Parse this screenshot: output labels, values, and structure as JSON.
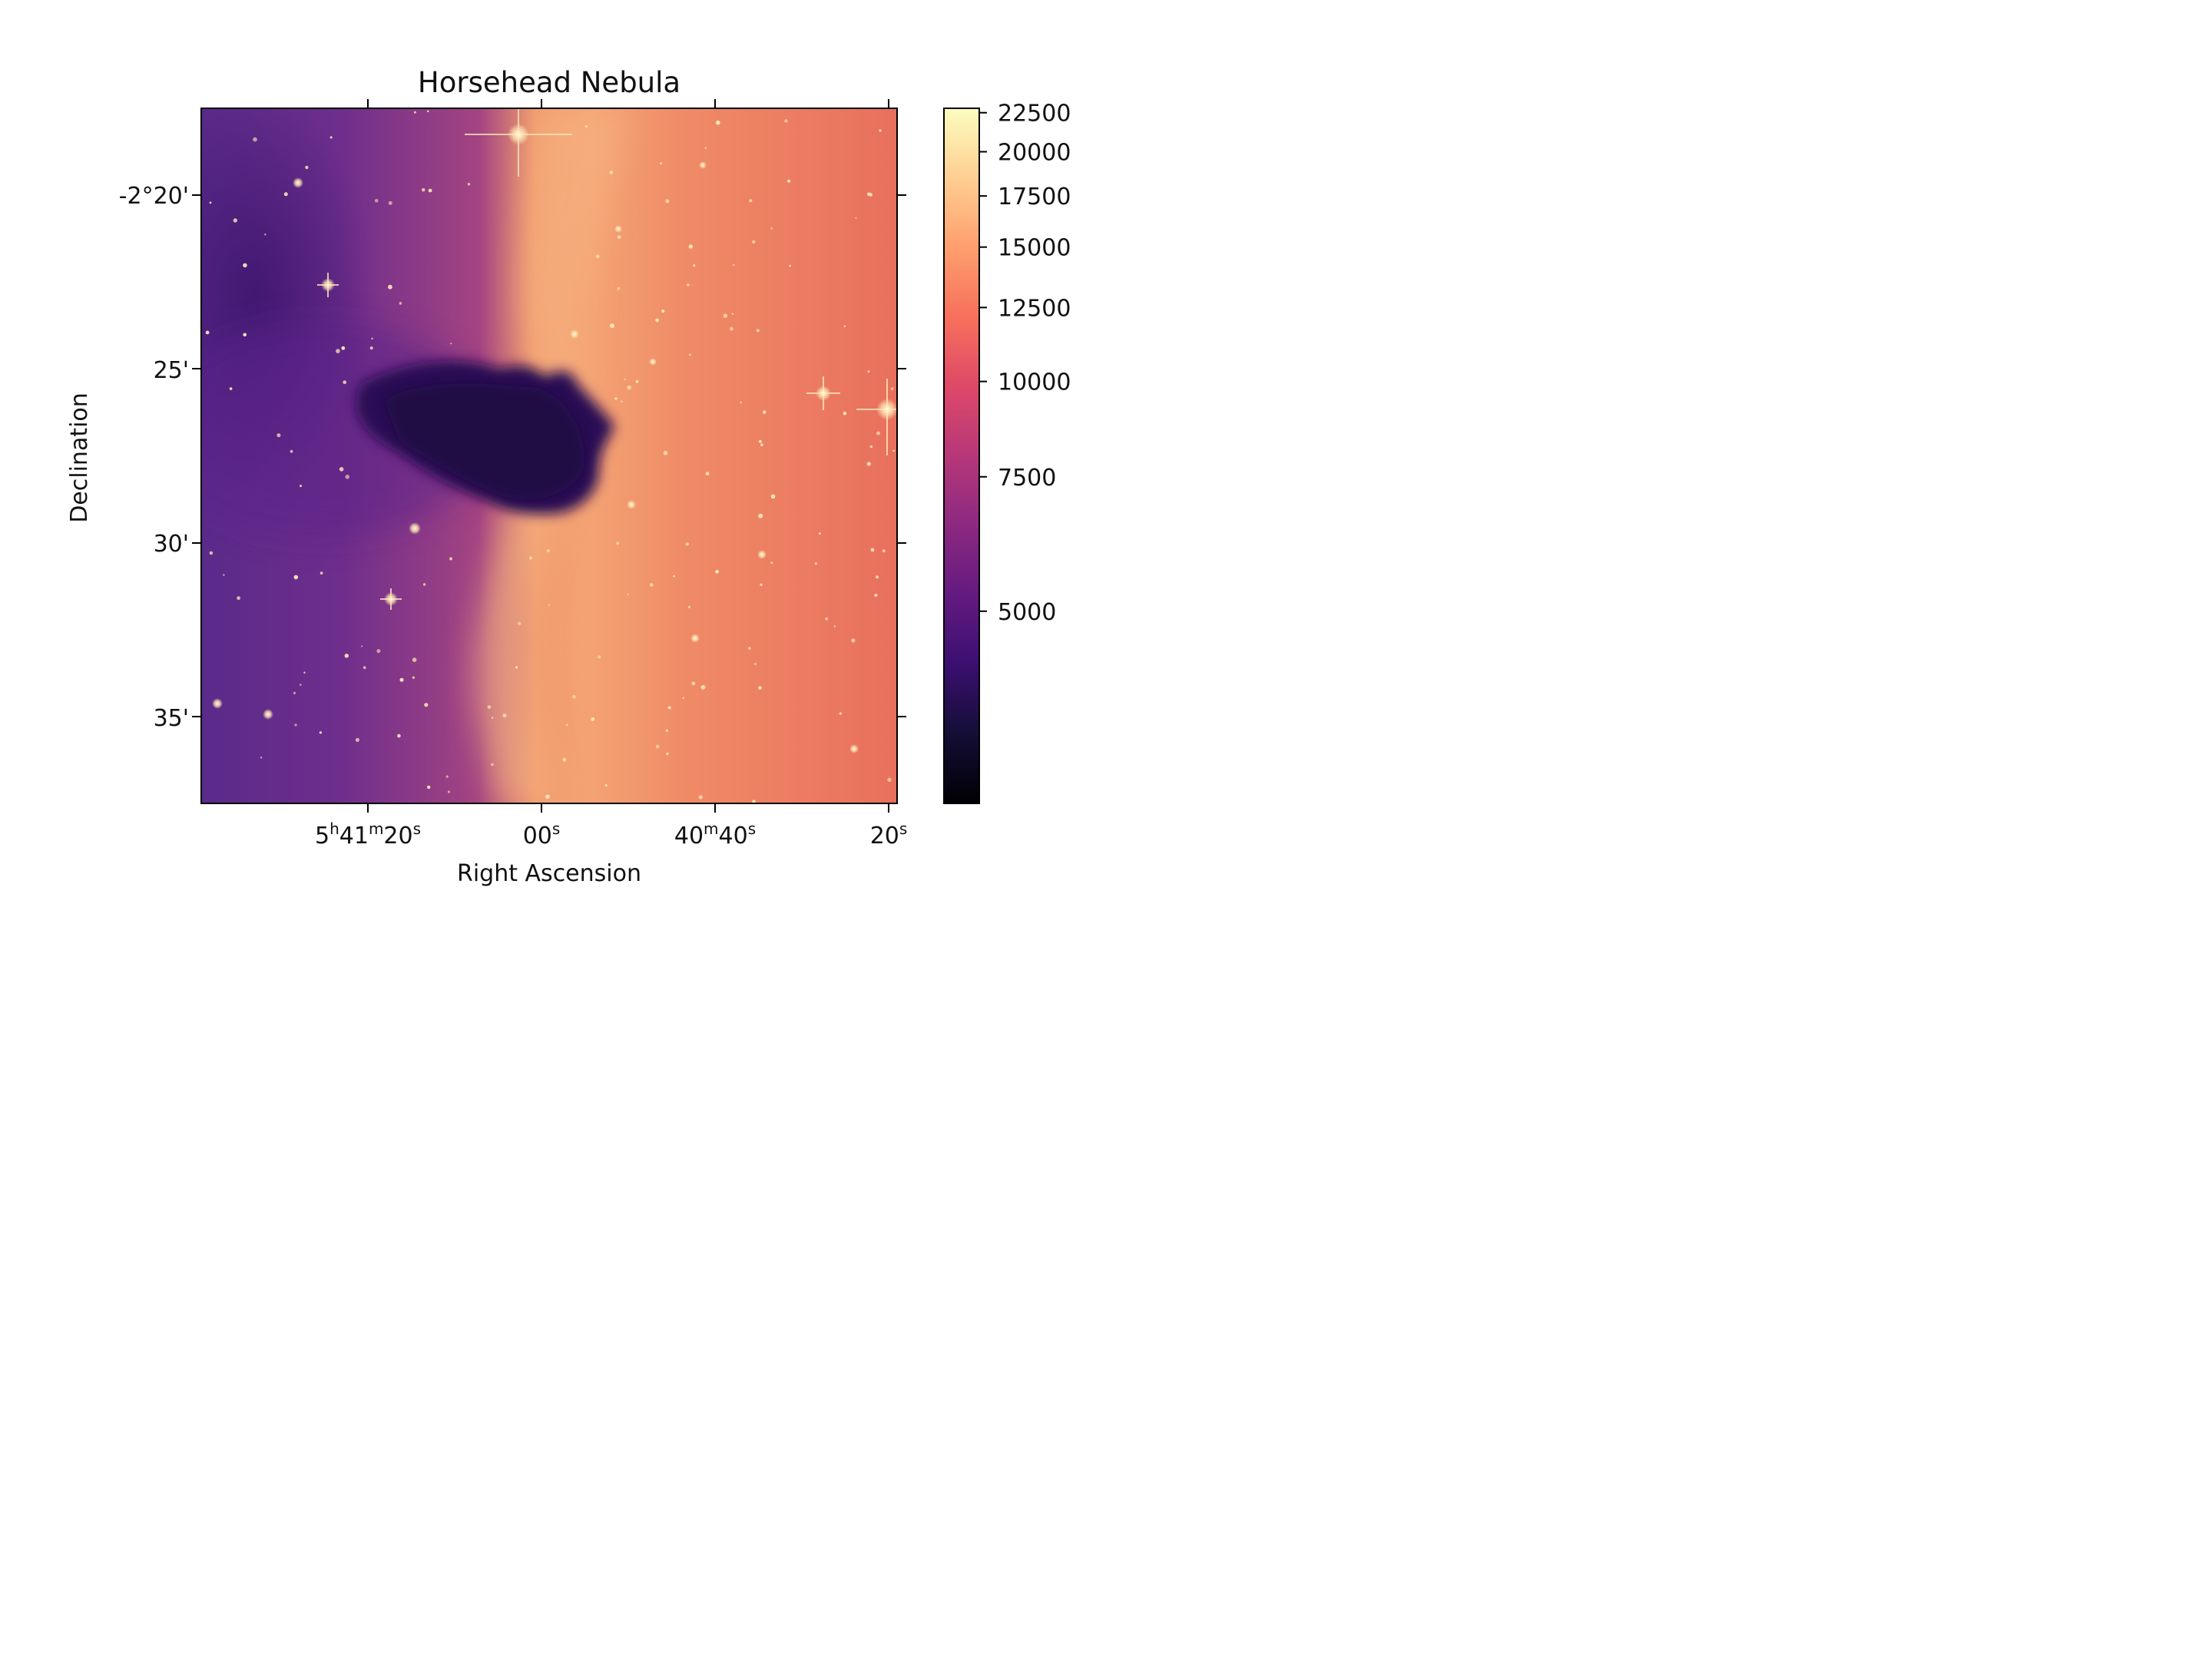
{
  "chart_data": {
    "type": "heatmap",
    "title": "Horsehead Nebula",
    "xlabel": "Right Ascension",
    "ylabel": "Declination",
    "colormap": "magma",
    "x_ticks": [
      {
        "base": "5",
        "s1": "h",
        "mid": "41",
        "s2": "m",
        "tail": "20",
        "s3": "s"
      },
      {
        "base": "",
        "s1": "",
        "mid": "",
        "s2": "",
        "tail": "00",
        "s3": "s"
      },
      {
        "base": "",
        "s1": "",
        "mid": "",
        "s2": "",
        "tail": "40",
        "s3": "m",
        "tail2": "40",
        "s4": "s"
      },
      {
        "base": "",
        "s1": "",
        "mid": "",
        "s2": "",
        "tail": "20",
        "s3": "s"
      }
    ],
    "y_ticks": [
      "-2°20'",
      "25'",
      "30'",
      "35'"
    ],
    "colorbar": {
      "ticks": [
        5000,
        7500,
        10000,
        12500,
        15000,
        17500,
        20000,
        22500
      ],
      "labels": [
        "5000",
        "7500",
        "10000",
        "12500",
        "15000",
        "17500",
        "20000",
        "22500"
      ],
      "range": [
        2800,
        22800
      ]
    }
  }
}
